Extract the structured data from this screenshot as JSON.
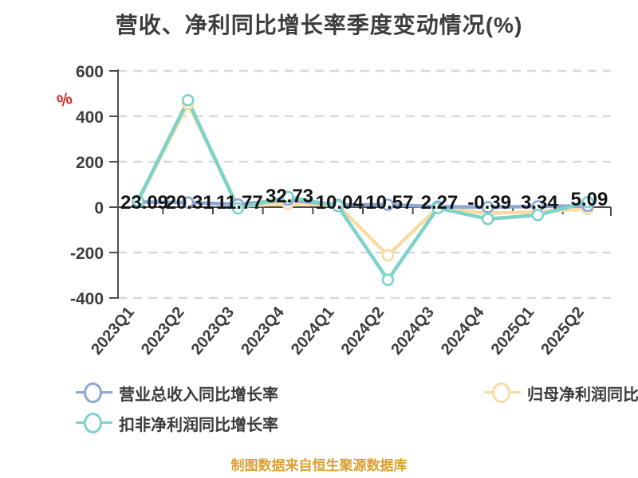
{
  "title": "营收、净利同比增长率季度变动情况(%)",
  "unit_symbol": "%",
  "footer": "制图数据来自恒生聚源数据库",
  "colors": {
    "revenue_series": "#8ba7d6",
    "net_profit_series": "#f8dca3",
    "deducted_profit_series": "#7dd2cc",
    "axis": "#4d4d4d",
    "grid": "#d9d9d9",
    "tick_label": "#3d3d3d",
    "data_label": "#141414",
    "title_text": "#3d3d3d",
    "unit_symbol_red": "#e02121",
    "footer_orange": "#dd9f2e"
  },
  "chart_data": {
    "type": "line",
    "title": "营收、净利同比增长率季度变动情况(%)",
    "xlabel": "",
    "ylabel": "%",
    "ylim": [
      -400,
      600
    ],
    "y_ticks": [
      600,
      400,
      200,
      0,
      -200,
      -400
    ],
    "grid": "horizontal dashed",
    "legend_position": "bottom",
    "categories": [
      "2023Q1",
      "2023Q2",
      "2023Q3",
      "2023Q4",
      "2024Q1",
      "2024Q2",
      "2024Q3",
      "2024Q4",
      "2025Q1",
      "2025Q2"
    ],
    "series": [
      {
        "name": "归母净利润同比增长率",
        "color": "#f8dca3",
        "values": [
          25,
          455,
          5,
          15,
          8,
          -212,
          -2,
          -27,
          -20,
          -8
        ],
        "show_labels": false
      },
      {
        "name": "营业总收入同比增长率",
        "color": "#8ba7d6",
        "values": [
          23.09,
          20.31,
          11.77,
          32.73,
          10.04,
          10.57,
          2.27,
          -0.39,
          3.34,
          5.09
        ],
        "labels": [
          "23.09",
          "20.31",
          "11.77",
          "32.73",
          "10.04",
          "10.57",
          "2.27",
          "-0.39",
          "3.34",
          "5.09"
        ],
        "show_labels": true
      },
      {
        "name": "扣非净利润同比增长率",
        "color": "#7dd2cc",
        "values": [
          28,
          471,
          -5,
          45,
          5,
          -320,
          -4,
          -52,
          -35,
          22
        ],
        "show_labels": false
      }
    ]
  },
  "legend": {
    "items": [
      {
        "label": "营业总收入同比增长率"
      },
      {
        "label": "归母净利润同比增长率"
      },
      {
        "label": "扣非净利润同比增长率"
      }
    ]
  }
}
